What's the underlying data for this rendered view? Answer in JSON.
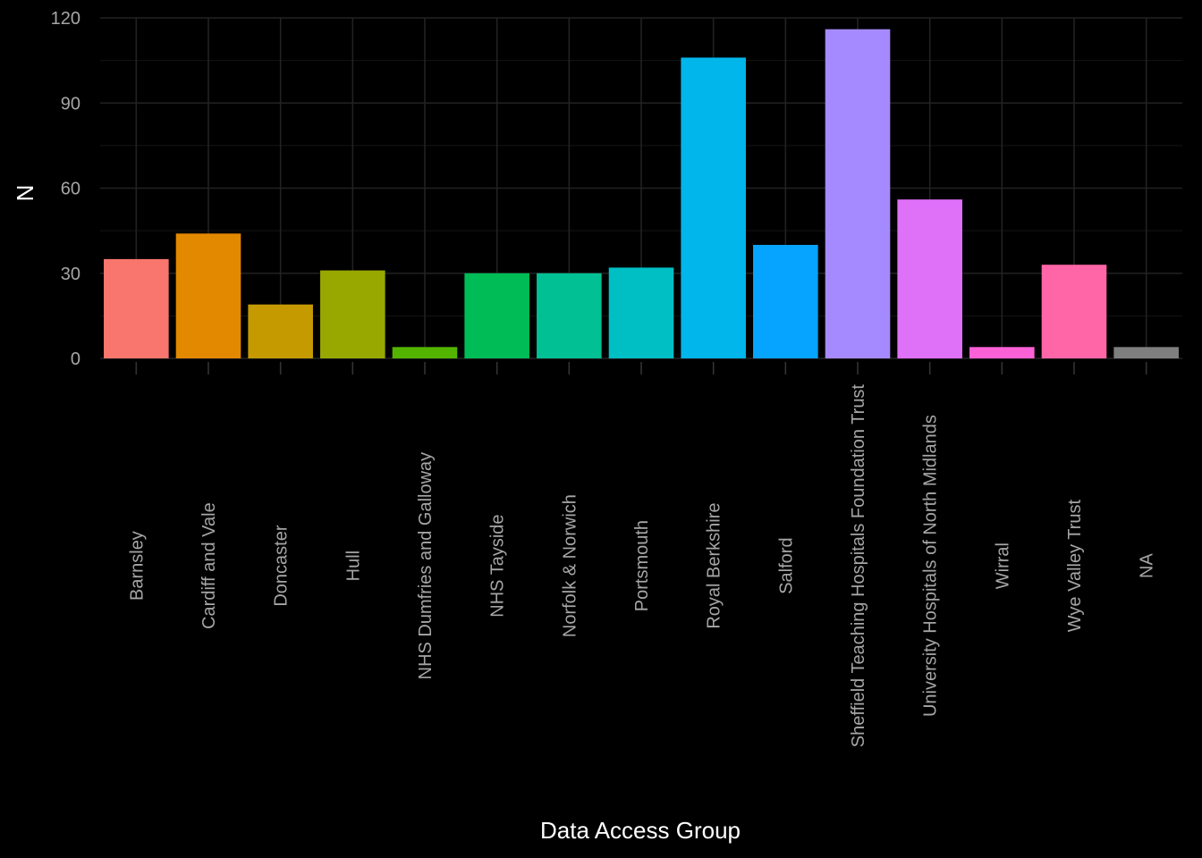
{
  "chart_data": {
    "type": "bar",
    "title": "",
    "xlabel": "Data Access Group",
    "ylabel": "N",
    "ylim": [
      0,
      120
    ],
    "yticks": [
      0,
      30,
      60,
      90,
      120
    ],
    "grid": true,
    "legend": "none",
    "categories": [
      "Barnsley",
      "Cardiff and Vale",
      "Doncaster",
      "Hull",
      "NHS Dumfries and Galloway",
      "NHS Tayside",
      "Norfolk & Norwich",
      "Portsmouth",
      "Royal Berkshire",
      "Salford",
      "Sheffield Teaching Hospitals Foundation Trust",
      "University Hospitals of North Midlands",
      "Wirral",
      "Wye Valley Trust",
      "NA"
    ],
    "values": [
      35,
      44,
      19,
      31,
      4,
      30,
      30,
      32,
      106,
      40,
      116,
      56,
      4,
      33,
      4
    ],
    "colors": [
      "#F8766D",
      "#E38900",
      "#C49A00",
      "#99A800",
      "#53B400",
      "#00BC56",
      "#00C094",
      "#00BFC4",
      "#00B6EB",
      "#06A4FF",
      "#A58AFF",
      "#DF70F8",
      "#FB61D7",
      "#FF66A8",
      "#7F7F7F"
    ]
  }
}
